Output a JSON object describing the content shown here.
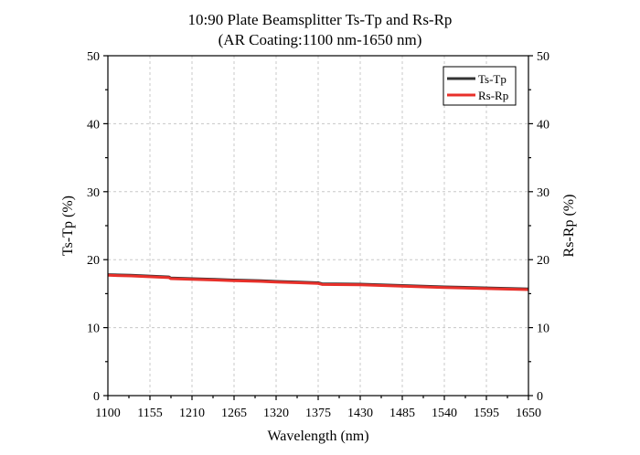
{
  "chart_data": {
    "type": "line",
    "title": "10:90 Plate Beamsplitter Ts-Tp and Rs-Rp",
    "subtitle": "(AR Coating:1100 nm-1650 nm)",
    "xlabel": "Wavelength (nm)",
    "ylabel": "Ts-Tp (%)",
    "y2label": "Rs-Rp (%)",
    "xlim": [
      1100,
      1650
    ],
    "ylim": [
      0,
      50
    ],
    "y2lim": [
      0,
      50
    ],
    "xticks": [
      1100,
      1155,
      1210,
      1265,
      1320,
      1375,
      1430,
      1485,
      1540,
      1595,
      1650
    ],
    "yticks": [
      0,
      10,
      20,
      30,
      40,
      50
    ],
    "grid": true,
    "legend_position": "top-right",
    "series": [
      {
        "name": "Ts-Tp",
        "color": "#333333",
        "x": [
          1100,
          1130,
          1160,
          1180,
          1182,
          1210,
          1240,
          1265,
          1300,
          1320,
          1350,
          1375,
          1380,
          1430,
          1485,
          1540,
          1595,
          1650
        ],
        "y": [
          17.8,
          17.7,
          17.55,
          17.45,
          17.3,
          17.2,
          17.1,
          17.0,
          16.9,
          16.8,
          16.7,
          16.6,
          16.45,
          16.4,
          16.2,
          16.0,
          15.85,
          15.7
        ]
      },
      {
        "name": "Rs-Rp",
        "color": "#e8302a",
        "x": [
          1100,
          1130,
          1160,
          1180,
          1182,
          1210,
          1240,
          1265,
          1300,
          1320,
          1350,
          1375,
          1380,
          1430,
          1485,
          1540,
          1595,
          1650
        ],
        "y": [
          17.7,
          17.6,
          17.45,
          17.35,
          17.2,
          17.1,
          17.0,
          16.9,
          16.8,
          16.7,
          16.6,
          16.5,
          16.35,
          16.3,
          16.1,
          15.9,
          15.75,
          15.6
        ]
      }
    ]
  }
}
